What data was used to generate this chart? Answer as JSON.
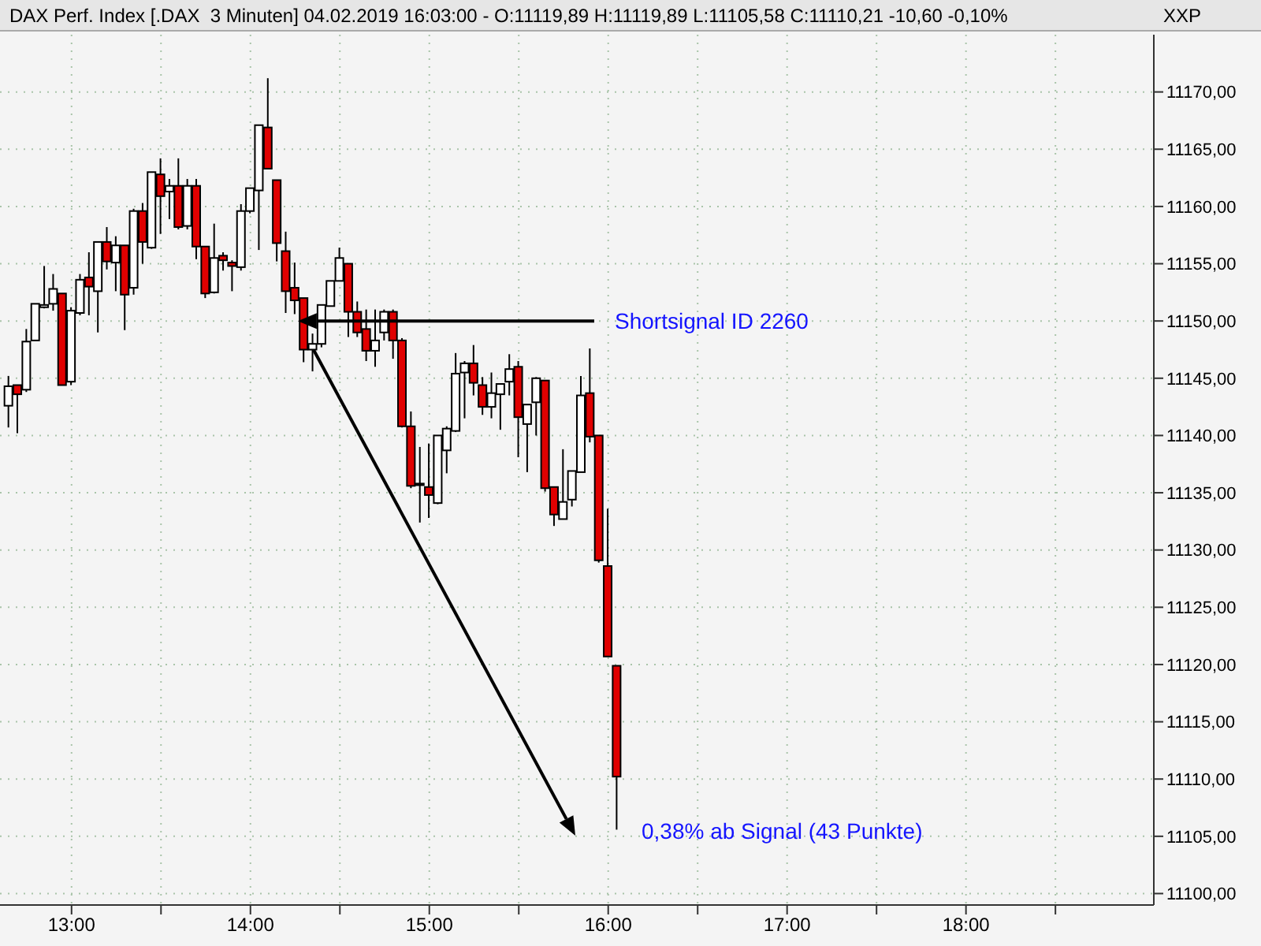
{
  "chart_data": {
    "type": "candlestick",
    "title": "DAX Perf. Index [.DAX  3 Minuten] 04.02.2019 16:03:00 - O:11119,89 H:11119,89 L:11105,58 C:11110,21 -10,60 -0,10%",
    "ylabel": "XXP",
    "x": [
      12.65,
      12.7,
      12.75,
      12.8,
      12.85,
      12.9,
      12.95,
      13,
      13.05,
      13.1,
      13.15,
      13.2,
      13.25,
      13.3,
      13.35,
      13.4,
      13.45,
      13.5,
      13.55,
      13.6,
      13.65,
      13.7,
      13.75,
      13.8,
      13.85,
      13.9,
      13.95,
      14,
      14.05,
      14.1,
      14.15,
      14.2,
      14.25,
      14.3,
      14.35,
      14.4,
      14.45,
      14.5,
      14.55,
      14.6,
      14.65,
      14.7,
      14.75,
      14.8,
      14.85,
      14.9,
      14.95,
      15,
      15.05,
      15.1,
      15.15,
      15.2,
      15.25,
      15.3,
      15.35,
      15.4,
      15.45,
      15.5,
      15.55,
      15.6,
      15.65,
      15.7,
      15.75,
      15.8,
      15.85,
      15.9,
      15.95,
      16,
      16.05
    ],
    "ohlc": [
      [
        11142.6,
        11145.2,
        11140.7,
        11144.3
      ],
      [
        11144.4,
        11144.4,
        11140.2,
        11143.6
      ],
      [
        11144.0,
        11149.3,
        11143.8,
        11148.2
      ],
      [
        11148.3,
        11151.5,
        11148.3,
        11151.5
      ],
      [
        11151.2,
        11154.8,
        11151.1,
        11151.4
      ],
      [
        11151.5,
        11154.1,
        11150.9,
        11152.8
      ],
      [
        11152.4,
        11152.4,
        11144.4,
        11144.4
      ],
      [
        11144.7,
        11151.2,
        11144.4,
        11150.9
      ],
      [
        11150.7,
        11154.1,
        11150.5,
        11153.6
      ],
      [
        11153.8,
        11156.0,
        11150.5,
        11153.0
      ],
      [
        11152.6,
        11156.9,
        11149.0,
        11156.9
      ],
      [
        11156.9,
        11158.2,
        11154.5,
        11155.2
      ],
      [
        11155.1,
        11157.4,
        11152.6,
        11156.6
      ],
      [
        11156.6,
        11156.6,
        11149.2,
        11152.3
      ],
      [
        11152.9,
        11159.8,
        11152.3,
        11159.6
      ],
      [
        11159.6,
        11160.3,
        11155.0,
        11156.9
      ],
      [
        11156.4,
        11163.0,
        11156.3,
        11163.0
      ],
      [
        11162.8,
        11164.2,
        11157.6,
        11160.9
      ],
      [
        11161.3,
        11162.4,
        11158.9,
        11161.8
      ],
      [
        11161.8,
        11164.2,
        11158.0,
        11158.2
      ],
      [
        11158.3,
        11162.4,
        11158.0,
        11161.8
      ],
      [
        11161.8,
        11162.4,
        11155.4,
        11156.5
      ],
      [
        11156.5,
        11156.5,
        11152.0,
        11152.4
      ],
      [
        11152.5,
        11158.5,
        11152.4,
        11155.5
      ],
      [
        11155.7,
        11156.0,
        11154.4,
        11155.3
      ],
      [
        11155.1,
        11155.3,
        11152.6,
        11154.8
      ],
      [
        11154.7,
        11160.2,
        11154.4,
        11159.6
      ],
      [
        11159.6,
        11161.6,
        11159.4,
        11161.6
      ],
      [
        11161.4,
        11167.1,
        11156.2,
        11167.1
      ],
      [
        11166.9,
        11171.2,
        11163.3,
        11163.3
      ],
      [
        11162.3,
        11162.3,
        11155.2,
        11156.8
      ],
      [
        11156.1,
        11157.8,
        11150.7,
        11152.6
      ],
      [
        11152.9,
        11155.1,
        11150.6,
        11151.8
      ],
      [
        11152.0,
        11152.0,
        11146.4,
        11147.5
      ],
      [
        11147.5,
        11148.9,
        11145.6,
        11148.0
      ],
      [
        11148.0,
        11151.4,
        11147.7,
        11151.4
      ],
      [
        11151.3,
        11153.5,
        11151.3,
        11153.5
      ],
      [
        11153.5,
        11156.4,
        11153.5,
        11155.5
      ],
      [
        11155.0,
        11155.0,
        11148.6,
        11150.8
      ],
      [
        11150.8,
        11151.7,
        11148.6,
        11149.0
      ],
      [
        11149.3,
        11151.0,
        11146.5,
        11147.4
      ],
      [
        11147.4,
        11151.0,
        11146.0,
        11148.3
      ],
      [
        11149.0,
        11151.0,
        11148.3,
        11150.8
      ],
      [
        11150.8,
        11151.0,
        11146.7,
        11148.3
      ],
      [
        11148.3,
        11148.5,
        11140.7,
        11140.8
      ],
      [
        11140.8,
        11142.1,
        11135.4,
        11135.6
      ],
      [
        11135.7,
        11139.0,
        11132.4,
        11135.8
      ],
      [
        11135.5,
        11139.3,
        11132.8,
        11134.8
      ],
      [
        11134.1,
        11140.0,
        11134.0,
        11140.0
      ],
      [
        11138.7,
        11140.8,
        11136.7,
        11140.6
      ],
      [
        11140.4,
        11147.2,
        11140.3,
        11145.4
      ],
      [
        11145.5,
        11146.5,
        11141.5,
        11146.3
      ],
      [
        11146.3,
        11147.9,
        11143.5,
        11144.6
      ],
      [
        11144.4,
        11145.1,
        11141.8,
        11142.5
      ],
      [
        11142.5,
        11145.5,
        11141.5,
        11143.7
      ],
      [
        11143.6,
        11144.5,
        11140.5,
        11144.5
      ],
      [
        11144.7,
        11147.1,
        11143.5,
        11145.8
      ],
      [
        11146.0,
        11146.5,
        11138.1,
        11141.6
      ],
      [
        11141.0,
        11142.7,
        11136.8,
        11142.7
      ],
      [
        11142.9,
        11145.1,
        11140.0,
        11145.0
      ],
      [
        11144.8,
        11144.8,
        11135.1,
        11135.4
      ],
      [
        11135.5,
        11135.5,
        11132.1,
        11133.1
      ],
      [
        11132.7,
        11138.8,
        11132.7,
        11134.2
      ],
      [
        11134.4,
        11136.9,
        11133.8,
        11136.9
      ],
      [
        11136.8,
        11145.2,
        11136.8,
        11143.5
      ],
      [
        11143.7,
        11147.6,
        11139.4,
        11139.9
      ],
      [
        11140.0,
        11140.0,
        11128.9,
        11129.1
      ],
      [
        11128.6,
        11133.6,
        11120.7,
        11120.7
      ],
      [
        11119.89,
        11119.89,
        11105.58,
        11110.21
      ]
    ],
    "xlim": [
      12.6,
      19.05
    ],
    "xticks": [
      {
        "value": 13,
        "label": "13:00"
      },
      {
        "value": 13.5,
        "label": null
      },
      {
        "value": 14,
        "label": "14:00"
      },
      {
        "value": 14.5,
        "label": null
      },
      {
        "value": 15,
        "label": "15:00"
      },
      {
        "value": 15.5,
        "label": null
      },
      {
        "value": 16,
        "label": "16:00"
      },
      {
        "value": 16.5,
        "label": null
      },
      {
        "value": 17,
        "label": "17:00"
      },
      {
        "value": 17.5,
        "label": null
      },
      {
        "value": 18,
        "label": "18:00"
      },
      {
        "value": 18.5,
        "label": null
      }
    ],
    "ylim": [
      11099,
      11175
    ],
    "yticks": [
      {
        "value": 11100,
        "label": "11100,00"
      },
      {
        "value": 11105,
        "label": "11105,00"
      },
      {
        "value": 11110,
        "label": "11110,00"
      },
      {
        "value": 11115,
        "label": "11115,00"
      },
      {
        "value": 11120,
        "label": "11120,00"
      },
      {
        "value": 11125,
        "label": "11125,00"
      },
      {
        "value": 11130,
        "label": "11130,00"
      },
      {
        "value": 11135,
        "label": "11135,00"
      },
      {
        "value": 11140,
        "label": "11140,00"
      },
      {
        "value": 11145,
        "label": "11145,00"
      },
      {
        "value": 11150,
        "label": "11150,00"
      },
      {
        "value": 11155,
        "label": "11155,00"
      },
      {
        "value": 11160,
        "label": "11160,00"
      },
      {
        "value": 11165,
        "label": "11165,00"
      },
      {
        "value": 11170,
        "label": "11170,00"
      }
    ],
    "grid": true,
    "annotations": [
      {
        "text": "Shortsignal ID 2260",
        "x": 14.3,
        "y": 11150
      },
      "0,38% ab Signal (43 Punkte)"
    ]
  }
}
